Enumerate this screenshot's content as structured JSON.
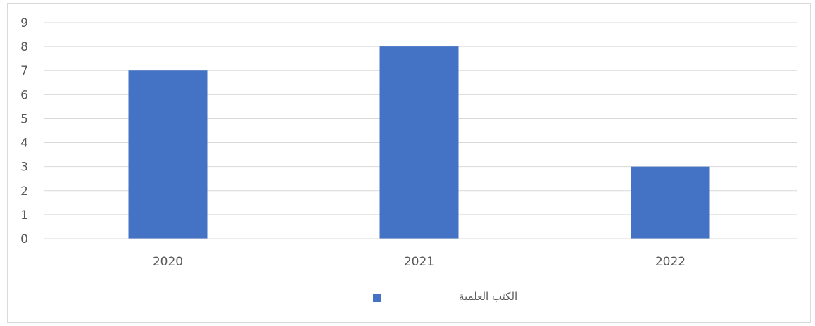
{
  "chart_data": {
    "type": "bar",
    "categories": [
      "2020",
      "2021",
      "2022"
    ],
    "series": [
      {
        "name": "الكتب العلمية",
        "values": [
          7,
          8,
          3
        ],
        "color": "#4472c4"
      }
    ],
    "ylim": [
      0,
      9
    ],
    "yticks": [
      "0",
      "1",
      "2",
      "3",
      "4",
      "5",
      "6",
      "7",
      "8",
      "9"
    ],
    "grid": true,
    "legend_position": "bottom",
    "gridline_color": "#d9d9d9"
  }
}
